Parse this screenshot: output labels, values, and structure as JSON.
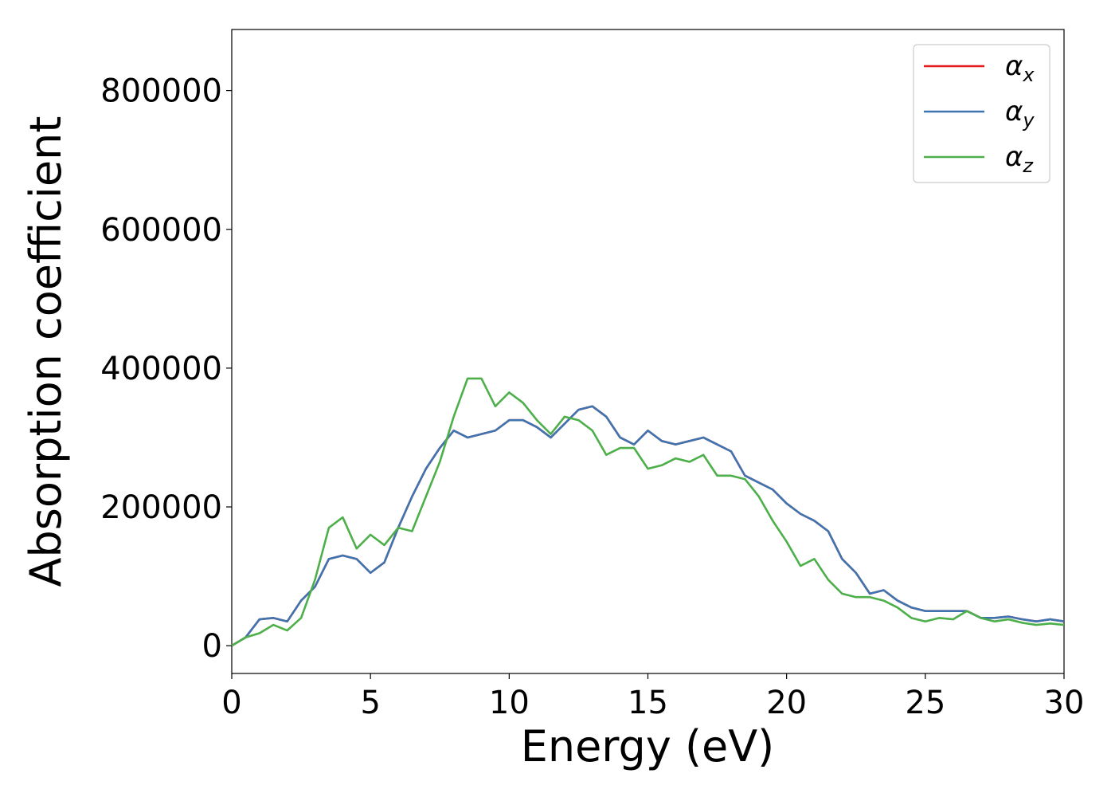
{
  "chart_data": {
    "type": "line",
    "xlabel": "Energy (eV)",
    "ylabel": "Absorption coefficient",
    "x": [
      0,
      0.5,
      1,
      1.5,
      2,
      2.5,
      3,
      3.5,
      4,
      4.5,
      5,
      5.5,
      6,
      6.5,
      7,
      7.5,
      8,
      8.5,
      9,
      9.5,
      10,
      10.5,
      11,
      11.5,
      12,
      12.5,
      13,
      13.5,
      14,
      14.5,
      15,
      15.5,
      16,
      16.5,
      17,
      17.5,
      18,
      18.5,
      19,
      19.5,
      20,
      20.5,
      21,
      21.5,
      22,
      22.5,
      23,
      23.5,
      24,
      24.5,
      25,
      25.5,
      26,
      26.5,
      27,
      27.5,
      28,
      28.5,
      29,
      29.5,
      30
    ],
    "series": [
      {
        "name": "αx",
        "color": "#e41a1c",
        "values": [
          0,
          12000,
          38000,
          40000,
          35000,
          65000,
          85000,
          125000,
          130000,
          125000,
          105000,
          120000,
          170000,
          215000,
          255000,
          285000,
          310000,
          300000,
          305000,
          310000,
          325000,
          325000,
          315000,
          300000,
          320000,
          340000,
          345000,
          330000,
          300000,
          290000,
          310000,
          295000,
          290000,
          295000,
          300000,
          290000,
          280000,
          245000,
          235000,
          225000,
          205000,
          190000,
          180000,
          165000,
          125000,
          105000,
          75000,
          80000,
          65000,
          55000,
          50000,
          50000,
          50000,
          50000,
          40000,
          40000,
          42000,
          38000,
          35000,
          38000,
          35000
        ]
      },
      {
        "name": "αy",
        "color": "#3e74b0",
        "values": [
          0,
          12000,
          38000,
          40000,
          35000,
          65000,
          85000,
          125000,
          130000,
          125000,
          105000,
          120000,
          170000,
          215000,
          255000,
          285000,
          310000,
          300000,
          305000,
          310000,
          325000,
          325000,
          315000,
          300000,
          320000,
          340000,
          345000,
          330000,
          300000,
          290000,
          310000,
          295000,
          290000,
          295000,
          300000,
          290000,
          280000,
          245000,
          235000,
          225000,
          205000,
          190000,
          180000,
          165000,
          125000,
          105000,
          75000,
          80000,
          65000,
          55000,
          50000,
          50000,
          50000,
          50000,
          40000,
          40000,
          42000,
          38000,
          35000,
          38000,
          35000
        ]
      },
      {
        "name": "αz",
        "color": "#4daf4a",
        "values": [
          0,
          12000,
          18000,
          30000,
          22000,
          40000,
          95000,
          170000,
          185000,
          140000,
          160000,
          145000,
          170000,
          165000,
          215000,
          265000,
          330000,
          385000,
          385000,
          345000,
          365000,
          350000,
          325000,
          305000,
          330000,
          325000,
          310000,
          275000,
          285000,
          285000,
          255000,
          260000,
          270000,
          265000,
          275000,
          245000,
          245000,
          240000,
          215000,
          180000,
          150000,
          115000,
          125000,
          95000,
          75000,
          70000,
          70000,
          65000,
          55000,
          40000,
          35000,
          40000,
          38000,
          50000,
          40000,
          35000,
          38000,
          33000,
          30000,
          32000,
          30000
        ]
      }
    ],
    "xlim": [
      0,
      30
    ],
    "xticks": [
      0,
      5,
      10,
      15,
      20,
      25,
      30
    ],
    "ylim": [
      -40000,
      888000
    ],
    "yticks": [
      0,
      200000,
      400000,
      600000,
      800000
    ],
    "legend": "upper right"
  }
}
